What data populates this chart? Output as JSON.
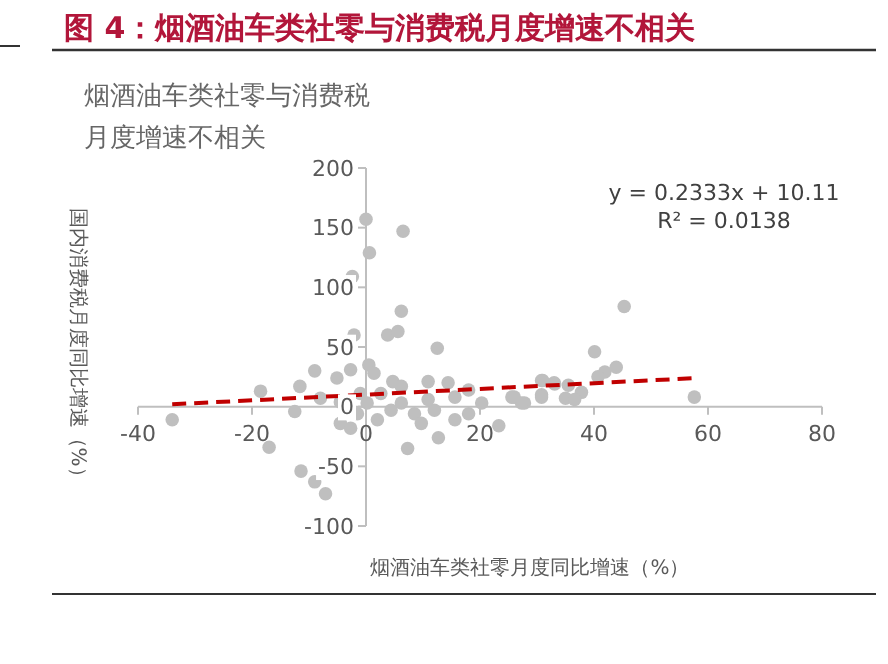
{
  "chart_data": {
    "type": "scatter",
    "title": "图 4：烟酒油车类社零与消费税月度增速不相关",
    "subtitle": "烟酒油车类社零与消费税月度增速不相关",
    "xlabel": "烟酒油车类社零月度同比增速（%）",
    "ylabel": "国内消费税月度同比增速（%）",
    "xlim": [
      -40,
      80
    ],
    "xticks": [
      -40,
      -20,
      0,
      20,
      40,
      60,
      80
    ],
    "ylim": [
      -100,
      200
    ],
    "yticks": [
      -100,
      -50,
      0,
      50,
      100,
      150,
      200
    ],
    "annotations": [
      "y = 0.2333x + 10.11",
      "R² = 0.0138"
    ],
    "series": [
      {
        "marker": "circle",
        "color": "#bfbfbf",
        "x": [
          0,
          0.6,
          6.5,
          -2.4,
          6.2,
          -2.1,
          3.8,
          5.6,
          12.5,
          0.5,
          -2.7,
          -9,
          -5.1,
          1.4,
          4.7,
          -11.6,
          -18.5,
          -34,
          -17,
          -12.5,
          -4.5,
          -2.7,
          -11.4,
          -9,
          -7.1,
          7.3,
          12.7,
          23.3,
          -8,
          -4.5,
          -1,
          2.6,
          6.2,
          10.9,
          14.4,
          15.6,
          8.5,
          4.4,
          12,
          18,
          20.3,
          26,
          27.8,
          30.8,
          33,
          30.8,
          2,
          9.7,
          15.6,
          -1.5,
          0.2,
          6.2,
          10.9,
          18,
          45.3,
          40.1,
          43.9,
          41.9,
          40.7,
          31,
          33.1,
          35.5,
          37.8,
          35,
          36.6,
          30.8,
          27.3,
          25.6,
          57.6
        ],
        "values": [
          157,
          129,
          147,
          109,
          80,
          60,
          60,
          63,
          49,
          35,
          31,
          30,
          24,
          28,
          21,
          17,
          13,
          -11,
          -34,
          -4,
          -14,
          -18,
          -54,
          -63,
          -73,
          -35,
          -26,
          -16,
          7,
          4,
          11,
          11,
          17,
          21,
          20,
          8,
          -6,
          -3,
          -3,
          -6,
          3,
          8,
          3,
          22,
          20,
          10,
          -11,
          -14,
          -11,
          -6,
          3,
          3,
          6,
          14,
          84,
          46,
          33,
          29,
          25,
          22,
          19,
          18,
          12,
          7,
          6,
          8,
          3,
          8,
          8
        ]
      },
      {
        "type": "line",
        "color": "#c00000",
        "line_style": "dashed",
        "marker": "none",
        "x": [
          -34,
          58
        ],
        "values": [
          2,
          24
        ]
      }
    ]
  }
}
